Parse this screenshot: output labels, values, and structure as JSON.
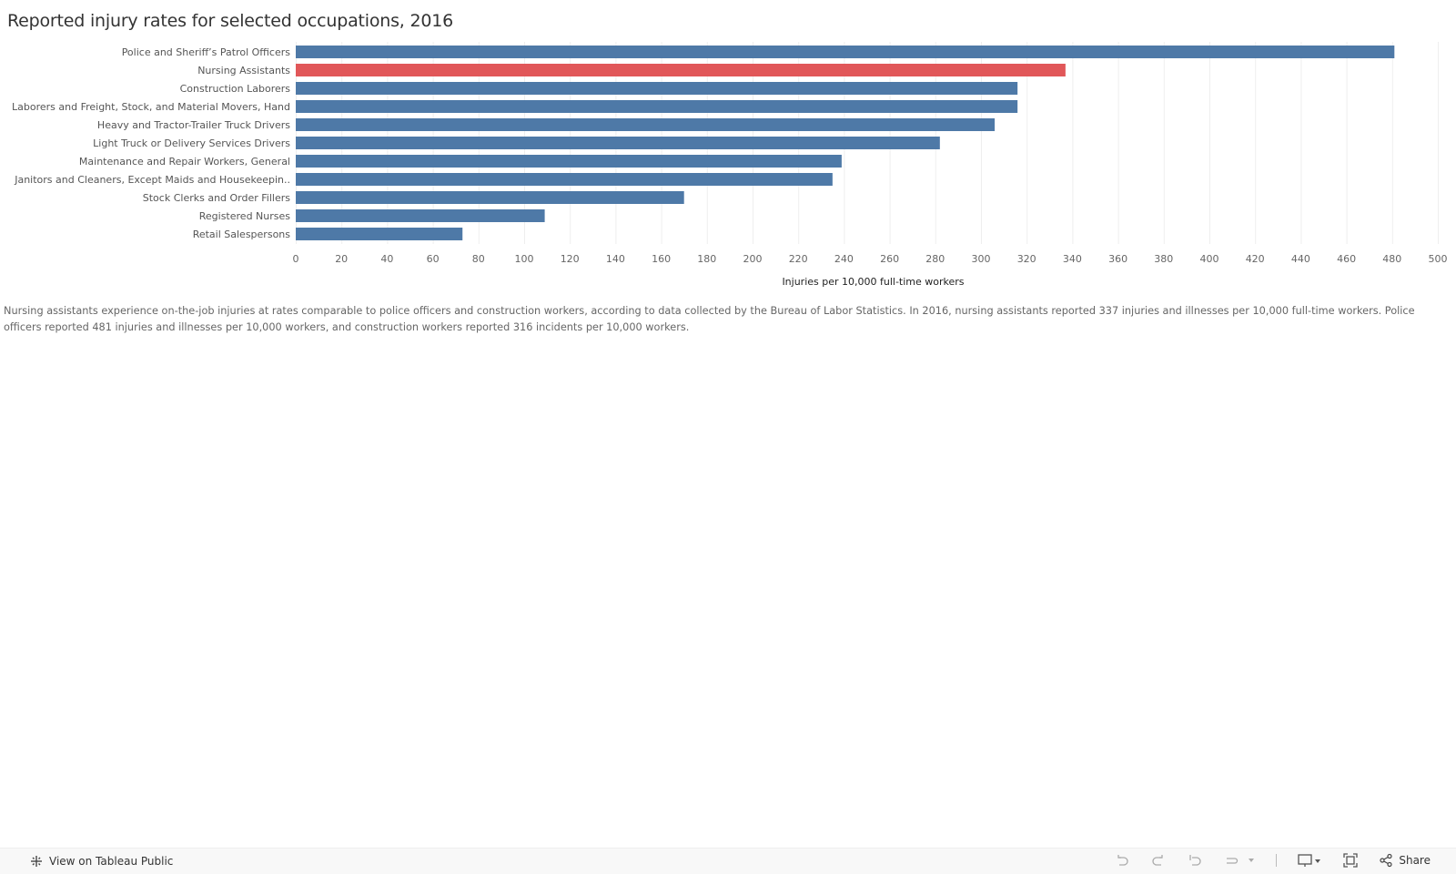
{
  "chart_data": {
    "type": "bar",
    "orientation": "horizontal",
    "title": "Reported injury rates for selected occupations, 2016",
    "categories": [
      "Police and Sheriff’s Patrol Officers",
      "Nursing Assistants",
      "Construction Laborers",
      "Laborers and Freight, Stock, and Material Movers, Hand",
      "Heavy and Tractor-Trailer Truck Drivers",
      "Light Truck or Delivery Services Drivers",
      "Maintenance and Repair Workers, General",
      "Janitors and Cleaners, Except Maids and Housekeepin..",
      "Stock Clerks and Order Fillers",
      "Registered Nurses",
      "Retail Salespersons"
    ],
    "values": [
      481,
      337,
      316,
      316,
      306,
      282,
      239,
      235,
      170,
      109,
      73
    ],
    "highlight_index": 1,
    "xlabel": "Injuries per 10,000 full-time workers",
    "ylabel": "",
    "xlim": [
      0,
      500
    ],
    "xticks": [
      0,
      20,
      40,
      60,
      80,
      100,
      120,
      140,
      160,
      180,
      200,
      220,
      240,
      260,
      280,
      300,
      320,
      340,
      360,
      380,
      400,
      420,
      440,
      460,
      480,
      500
    ],
    "grid": "vertical",
    "colors": {
      "bar": "#4e79a7",
      "highlight": "#e15759",
      "grid": "#eeeeee"
    }
  },
  "note": "Nursing assistants experience on-the-job injuries at rates comparable to police officers and construction workers, according to data collected by the Bureau of Labor Statistics. In 2016, nursing assistants reported 337 injuries and illnesses per 10,000 full-time workers. Police officers reported 481 injuries and illnesses per 10,000 workers, and construction workers reported 316 incidents per 10,000 workers.",
  "toolbar": {
    "view_on_tableau": "View on Tableau Public",
    "share_label": "Share",
    "icons": [
      "tableau-logo-icon",
      "undo-icon",
      "redo-icon",
      "revert-icon",
      "refresh-icon",
      "pause-dropdown-icon",
      "download-icon",
      "fullscreen-icon",
      "share-icon"
    ]
  }
}
